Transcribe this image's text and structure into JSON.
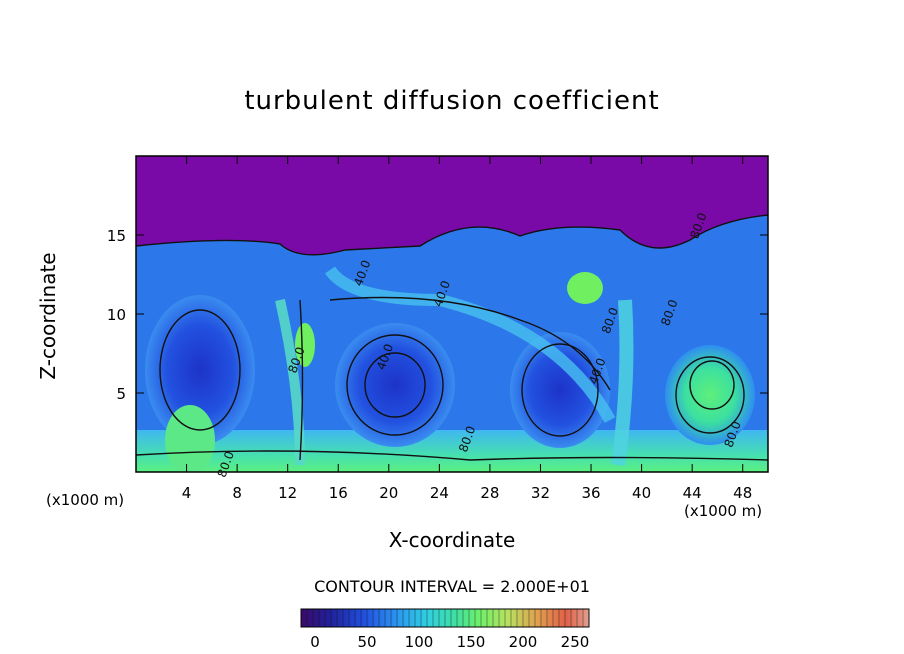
{
  "chart_data": {
    "type": "heatmap",
    "title": "turbulent diffusion coefficient",
    "xlabel": "X-coordinate",
    "ylabel": "Z-coordinate",
    "x_unit_label": "(x1000 m)",
    "xlim": [
      0,
      50
    ],
    "ylim": [
      0,
      20
    ],
    "x_ticks": [
      4,
      8,
      12,
      16,
      20,
      24,
      28,
      32,
      36,
      40,
      44,
      48
    ],
    "y_ticks": [
      5,
      10,
      15
    ],
    "contour_interval_label": "CONTOUR INTERVAL = 2.000E+01",
    "contour_labels": [
      {
        "text": "40.0",
        "x": 18.2,
        "z": 12.5
      },
      {
        "text": "40.0",
        "x": 24.5,
        "z": 11.2
      },
      {
        "text": "80.0",
        "x": 13.0,
        "z": 7.0
      },
      {
        "text": "40.0",
        "x": 20.0,
        "z": 7.2
      },
      {
        "text": "80.0",
        "x": 26.5,
        "z": 2.0
      },
      {
        "text": "80.0",
        "x": 37.8,
        "z": 9.5
      },
      {
        "text": "40.0",
        "x": 36.8,
        "z": 6.3
      },
      {
        "text": "80.0",
        "x": 42.5,
        "z": 10.0
      },
      {
        "text": "80.0",
        "x": 47.5,
        "z": 2.3
      },
      {
        "text": "80.0",
        "x": 7.4,
        "z": 0.4
      },
      {
        "text": "80.0",
        "x": 44.8,
        "z": 15.5
      }
    ],
    "colorbar": {
      "min": 0,
      "max": 250,
      "tick_labels": [
        "0",
        "50",
        "100",
        "150",
        "200",
        "250"
      ],
      "tick_values": [
        0,
        50,
        100,
        150,
        200,
        250
      ]
    },
    "field_description_regions": [
      {
        "region": "upper layer",
        "z_range": [
          14.5,
          20
        ],
        "value": 0
      },
      {
        "region": "main convective layer",
        "z_range": [
          0,
          14.5
        ],
        "value_range": [
          20,
          160
        ]
      }
    ]
  },
  "colors": {
    "upper_layer": "#7a0aa8",
    "dark_blue": "#1e2fd0",
    "mid_blue": "#2f7ff0",
    "light_blue": "#3fc0f0",
    "cyan": "#40e0d0",
    "green": "#50f070",
    "bright_green": "#70ff50"
  }
}
